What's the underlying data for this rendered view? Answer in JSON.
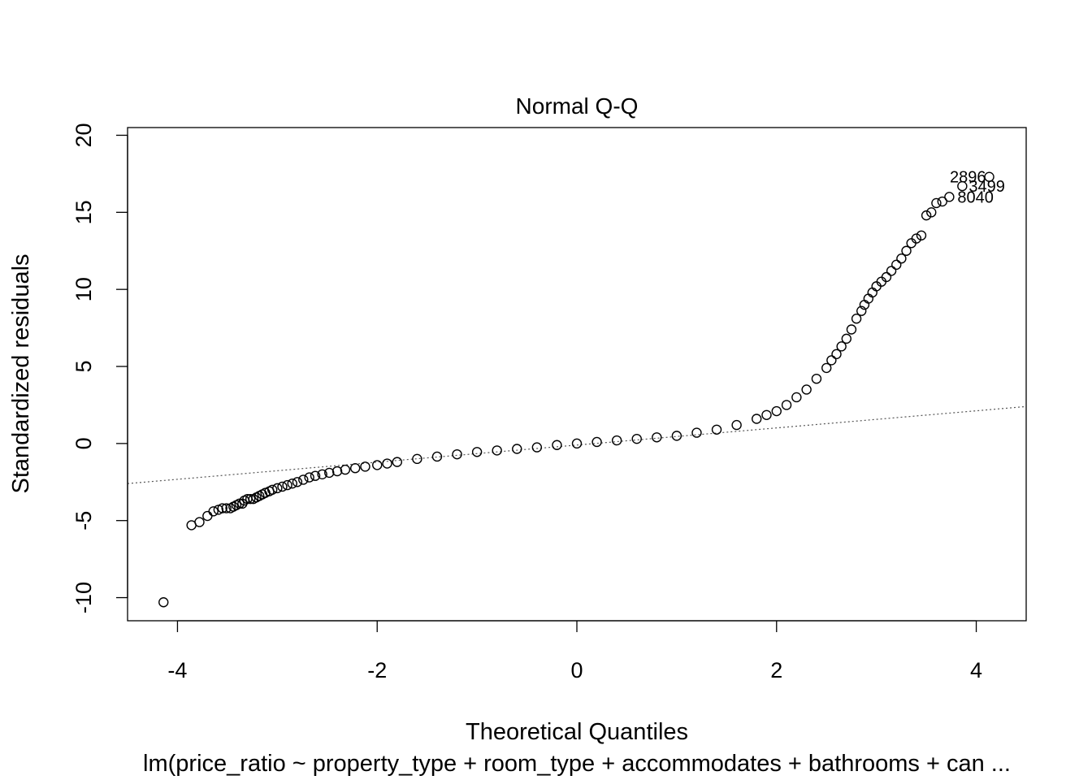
{
  "chart_data": {
    "type": "scatter",
    "title": "Normal Q-Q",
    "xlabel": "Theoretical Quantiles",
    "ylabel": "Standardized residuals",
    "subtitle": "lm(price_ratio ~ property_type + room_type + accommodates + bathrooms + can ...",
    "xlim": [
      -4.5,
      4.5
    ],
    "ylim": [
      -11.5,
      20.5
    ],
    "x_ticks": [
      -4,
      -2,
      0,
      2,
      4
    ],
    "x_tick_labels": [
      "-4",
      "-2",
      "0",
      "2",
      "4"
    ],
    "y_ticks": [
      -10,
      -5,
      0,
      5,
      10,
      15,
      20
    ],
    "y_tick_labels": [
      "-10",
      "-5",
      "0",
      "5",
      "10",
      "15",
      "20"
    ],
    "grid": false,
    "reference_line": {
      "x": [
        -4.5,
        4.5
      ],
      "y": [
        -2.6,
        2.4
      ],
      "style": "dotted"
    },
    "points": {
      "x": [
        -4.14,
        -3.86,
        -3.78,
        -3.7,
        -3.64,
        -3.59,
        -3.55,
        -3.51,
        -3.47,
        -3.44,
        -3.41,
        -3.38,
        -3.35,
        -3.33,
        -3.3,
        -3.27,
        -3.24,
        -3.21,
        -3.18,
        -3.15,
        -3.12,
        -3.08,
        -3.05,
        -3.0,
        -2.95,
        -2.9,
        -2.85,
        -2.8,
        -2.74,
        -2.68,
        -2.62,
        -2.55,
        -2.48,
        -2.4,
        -2.32,
        -2.22,
        -2.12,
        -2.0,
        -1.9,
        -1.8,
        -1.6,
        -1.4,
        -1.2,
        -1.0,
        -0.8,
        -0.6,
        -0.4,
        -0.2,
        0.0,
        0.2,
        0.4,
        0.6,
        0.8,
        1.0,
        1.2,
        1.4,
        1.6,
        1.8,
        1.9,
        2.0,
        2.1,
        2.2,
        2.3,
        2.4,
        2.5,
        2.55,
        2.6,
        2.65,
        2.7,
        2.75,
        2.8,
        2.85,
        2.88,
        2.92,
        2.96,
        3.0,
        3.05,
        3.1,
        3.15,
        3.2,
        3.25,
        3.3,
        3.35,
        3.4,
        3.45,
        3.5,
        3.55,
        3.6,
        3.66,
        3.73,
        3.86,
        4.13
      ],
      "y": [
        -10.3,
        -5.3,
        -5.1,
        -4.7,
        -4.4,
        -4.3,
        -4.2,
        -4.2,
        -4.2,
        -4.1,
        -4.0,
        -3.9,
        -3.9,
        -3.7,
        -3.6,
        -3.6,
        -3.6,
        -3.5,
        -3.4,
        -3.3,
        -3.2,
        -3.1,
        -3.0,
        -2.9,
        -2.8,
        -2.7,
        -2.6,
        -2.5,
        -2.35,
        -2.2,
        -2.1,
        -2.0,
        -1.9,
        -1.8,
        -1.7,
        -1.6,
        -1.5,
        -1.4,
        -1.3,
        -1.2,
        -1.0,
        -0.85,
        -0.7,
        -0.55,
        -0.45,
        -0.35,
        -0.25,
        -0.1,
        0.0,
        0.1,
        0.2,
        0.3,
        0.4,
        0.5,
        0.7,
        0.9,
        1.2,
        1.6,
        1.85,
        2.1,
        2.5,
        3.0,
        3.5,
        4.2,
        4.9,
        5.4,
        5.8,
        6.3,
        6.8,
        7.4,
        8.1,
        8.6,
        9.0,
        9.4,
        9.8,
        10.2,
        10.5,
        10.8,
        11.2,
        11.6,
        12.0,
        12.5,
        13.0,
        13.3,
        13.5,
        14.8,
        15.0,
        15.6,
        15.7,
        16.0,
        16.7,
        17.3
      ]
    },
    "labeled_points": [
      {
        "label": "2896",
        "x": 4.13,
        "y": 17.3
      },
      {
        "label": "3499",
        "x": 3.86,
        "y": 16.7
      },
      {
        "label": "8040",
        "x": 3.73,
        "y": 16.0
      }
    ]
  }
}
